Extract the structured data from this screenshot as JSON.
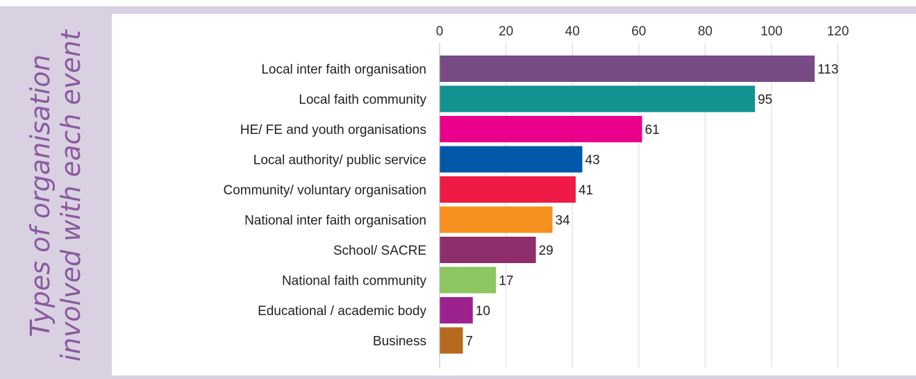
{
  "side_title": {
    "line1": "Types of organisation",
    "line2": "involved with each event",
    "color": "#8a5a9e"
  },
  "chart_data": {
    "type": "bar",
    "orientation": "horizontal",
    "categories": [
      "Local inter faith organisation",
      "Local faith community",
      "HE/ FE and youth organisations",
      "Local authority/ public service",
      "Community/ voluntary organisation",
      "National inter faith organisation",
      "School/ SACRE",
      "National faith community",
      "Educational / academic body",
      "Business"
    ],
    "values": [
      113,
      95,
      61,
      43,
      41,
      34,
      29,
      17,
      10,
      7
    ],
    "colors": [
      "#774c84",
      "#139390",
      "#ea008b",
      "#0058a8",
      "#ef1a46",
      "#f6901e",
      "#8e2f6b",
      "#8cc660",
      "#9c238d",
      "#b56a1d"
    ],
    "xticks": [
      0,
      20,
      40,
      60,
      80,
      100,
      120
    ],
    "xlim": [
      0,
      140
    ],
    "x_axis_position": "top",
    "data_labels": true,
    "grid": "vertical",
    "legend": "none"
  }
}
